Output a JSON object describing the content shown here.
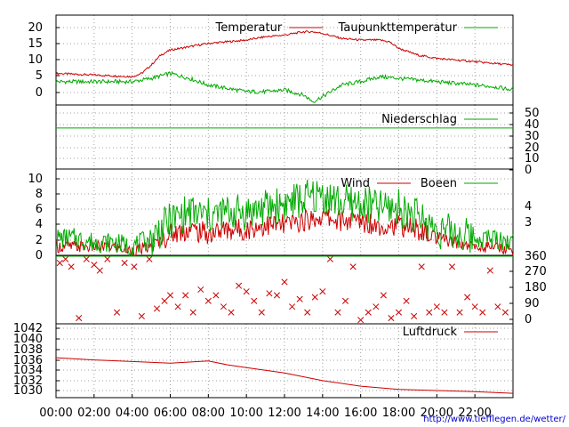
{
  "url": "http://www.tiefflegen.de/wetter/",
  "colors": {
    "red": "#cc0000",
    "green": "#00aa00",
    "grid": "#a0a0a0",
    "axis": "#000000"
  },
  "chart_data": [
    {
      "type": "line",
      "id": "temperature",
      "y_ticks": [
        "20",
        "15",
        "10",
        "5",
        "0"
      ],
      "ylim": [
        -4,
        23
      ],
      "grid": true,
      "legend": "top-right",
      "series": [
        {
          "name": "Temperatur",
          "color": "#cc0000",
          "x": [
            0,
            2,
            4,
            4.5,
            5,
            5.5,
            6,
            7,
            8,
            9,
            10,
            11,
            12,
            13,
            13.5,
            14,
            15,
            16,
            17,
            17.5,
            18,
            19,
            20,
            21,
            22,
            23,
            24
          ],
          "y": [
            5.5,
            5,
            4.5,
            5.5,
            8,
            11,
            12.5,
            13.5,
            14.5,
            15,
            15.5,
            16.5,
            17,
            18,
            18,
            17.5,
            16,
            15.5,
            15.5,
            15,
            13,
            11,
            10,
            9.5,
            9,
            8.5,
            8
          ]
        },
        {
          "name": "Taupunkttemperatur",
          "color": "#00aa00",
          "x": [
            0,
            2,
            4,
            5,
            6,
            7,
            8,
            9,
            10,
            11,
            12,
            13,
            13.5,
            14,
            15,
            16,
            17,
            18,
            19,
            20,
            21,
            22,
            23,
            24
          ],
          "y": [
            3,
            3,
            3,
            4,
            5.5,
            4,
            2,
            1,
            0,
            0,
            0.5,
            -1,
            -3,
            -1.5,
            2,
            3,
            4.5,
            4,
            3.5,
            3,
            2.5,
            2,
            1.5,
            0.5
          ]
        }
      ]
    },
    {
      "type": "line",
      "id": "precipitation",
      "y_ticks": [
        "50",
        "40",
        "30",
        "20",
        "10",
        "0"
      ],
      "ylim": [
        0,
        50
      ],
      "grid": true,
      "legend": "top-right",
      "series": [
        {
          "name": "Niederschlag",
          "color": "#00aa00",
          "x": [
            0,
            24
          ],
          "y": [
            32,
            32
          ]
        }
      ]
    },
    {
      "type": "line",
      "id": "wind",
      "y_ticks": [
        "10",
        "8",
        "6",
        "4",
        "2",
        "0"
      ],
      "ylim": [
        0,
        10
      ],
      "y2_ticks": [
        "4",
        "3"
      ],
      "grid": true,
      "legend": "top-right",
      "series": [
        {
          "name": "Wind",
          "color": "#cc0000",
          "x": [
            0,
            1,
            2,
            3,
            4,
            5,
            6,
            7,
            8,
            9,
            10,
            11,
            12,
            13,
            14,
            15,
            16,
            17,
            18,
            19,
            20,
            21,
            22,
            23,
            24
          ],
          "y": [
            1,
            1,
            1,
            1,
            0.5,
            1,
            2.5,
            3,
            2.5,
            3,
            3,
            3.5,
            3.5,
            4,
            4.5,
            4,
            4,
            3.5,
            3.5,
            3,
            2,
            1.5,
            1,
            1,
            0.5
          ]
        },
        {
          "name": "Boeen",
          "color": "#00aa00",
          "x": [
            0,
            1,
            2,
            3,
            4,
            5,
            6,
            7,
            8,
            9,
            10,
            11,
            12,
            13,
            14,
            15,
            16,
            17,
            18,
            19,
            20,
            21,
            22,
            23,
            24
          ],
          "y": [
            2,
            2,
            1.5,
            1.5,
            1,
            2,
            4,
            5,
            4.5,
            5,
            5,
            5.5,
            6,
            6.5,
            7,
            6,
            6,
            5.5,
            5.5,
            4.5,
            3,
            2.5,
            2,
            2,
            1.5
          ]
        }
      ]
    },
    {
      "type": "scatter",
      "id": "wind-direction",
      "y_ticks": [
        "360",
        "270",
        "180",
        "90",
        "0"
      ],
      "ylim": [
        0,
        360
      ],
      "marker": "x",
      "series": [
        {
          "color": "#cc0000",
          "x": [
            0.2,
            0.5,
            0.8,
            1.2,
            1.6,
            2.0,
            2.3,
            2.7,
            3.2,
            3.6,
            4.1,
            4.5,
            4.9,
            5.3,
            5.7,
            6.0,
            6.4,
            6.8,
            7.2,
            7.6,
            8.0,
            8.4,
            8.8,
            9.2,
            9.6,
            10.0,
            10.4,
            10.8,
            11.2,
            11.6,
            12.0,
            12.4,
            12.8,
            13.2,
            13.6,
            14.0,
            14.4,
            14.8,
            15.2,
            15.6,
            16.0,
            16.4,
            16.8,
            17.2,
            17.6,
            18.0,
            18.4,
            18.8,
            19.2,
            19.6,
            20.0,
            20.4,
            20.8,
            21.2,
            21.6,
            22.0,
            22.4,
            22.8,
            23.2,
            23.6
          ],
          "y": [
            320,
            340,
            300,
            30,
            340,
            310,
            280,
            340,
            60,
            320,
            300,
            40,
            340,
            80,
            120,
            150,
            90,
            150,
            60,
            180,
            120,
            150,
            90,
            60,
            200,
            170,
            120,
            60,
            160,
            150,
            220,
            90,
            130,
            60,
            140,
            170,
            340,
            60,
            120,
            300,
            20,
            60,
            90,
            150,
            30,
            60,
            120,
            40,
            300,
            60,
            90,
            60,
            300,
            60,
            140,
            90,
            60,
            280,
            90,
            60
          ]
        }
      ]
    },
    {
      "type": "line",
      "id": "pressure",
      "y_ticks": [
        "1042",
        "1040",
        "1038",
        "1036",
        "1034",
        "1032",
        "1030"
      ],
      "ylim": [
        1029.5,
        1043
      ],
      "grid": true,
      "legend": "top-right",
      "series": [
        {
          "name": "Luftdruck",
          "color": "#cc0000",
          "x": [
            0,
            2,
            4,
            6,
            8,
            9,
            10,
            12,
            14,
            16,
            18,
            20,
            22,
            24
          ],
          "y": [
            1036.8,
            1036.4,
            1036.1,
            1035.8,
            1036.2,
            1035.5,
            1035,
            1034,
            1032.6,
            1031.6,
            1031,
            1030.8,
            1030.6,
            1030.3
          ]
        }
      ]
    }
  ],
  "x_axis": {
    "xlim": [
      0,
      24
    ],
    "tick_labels": [
      "00:00",
      "02:00",
      "04:00",
      "06:00",
      "08:00",
      "10:00",
      "12:00",
      "14:00",
      "16:00",
      "18:00",
      "20:00",
      "22:00"
    ]
  }
}
